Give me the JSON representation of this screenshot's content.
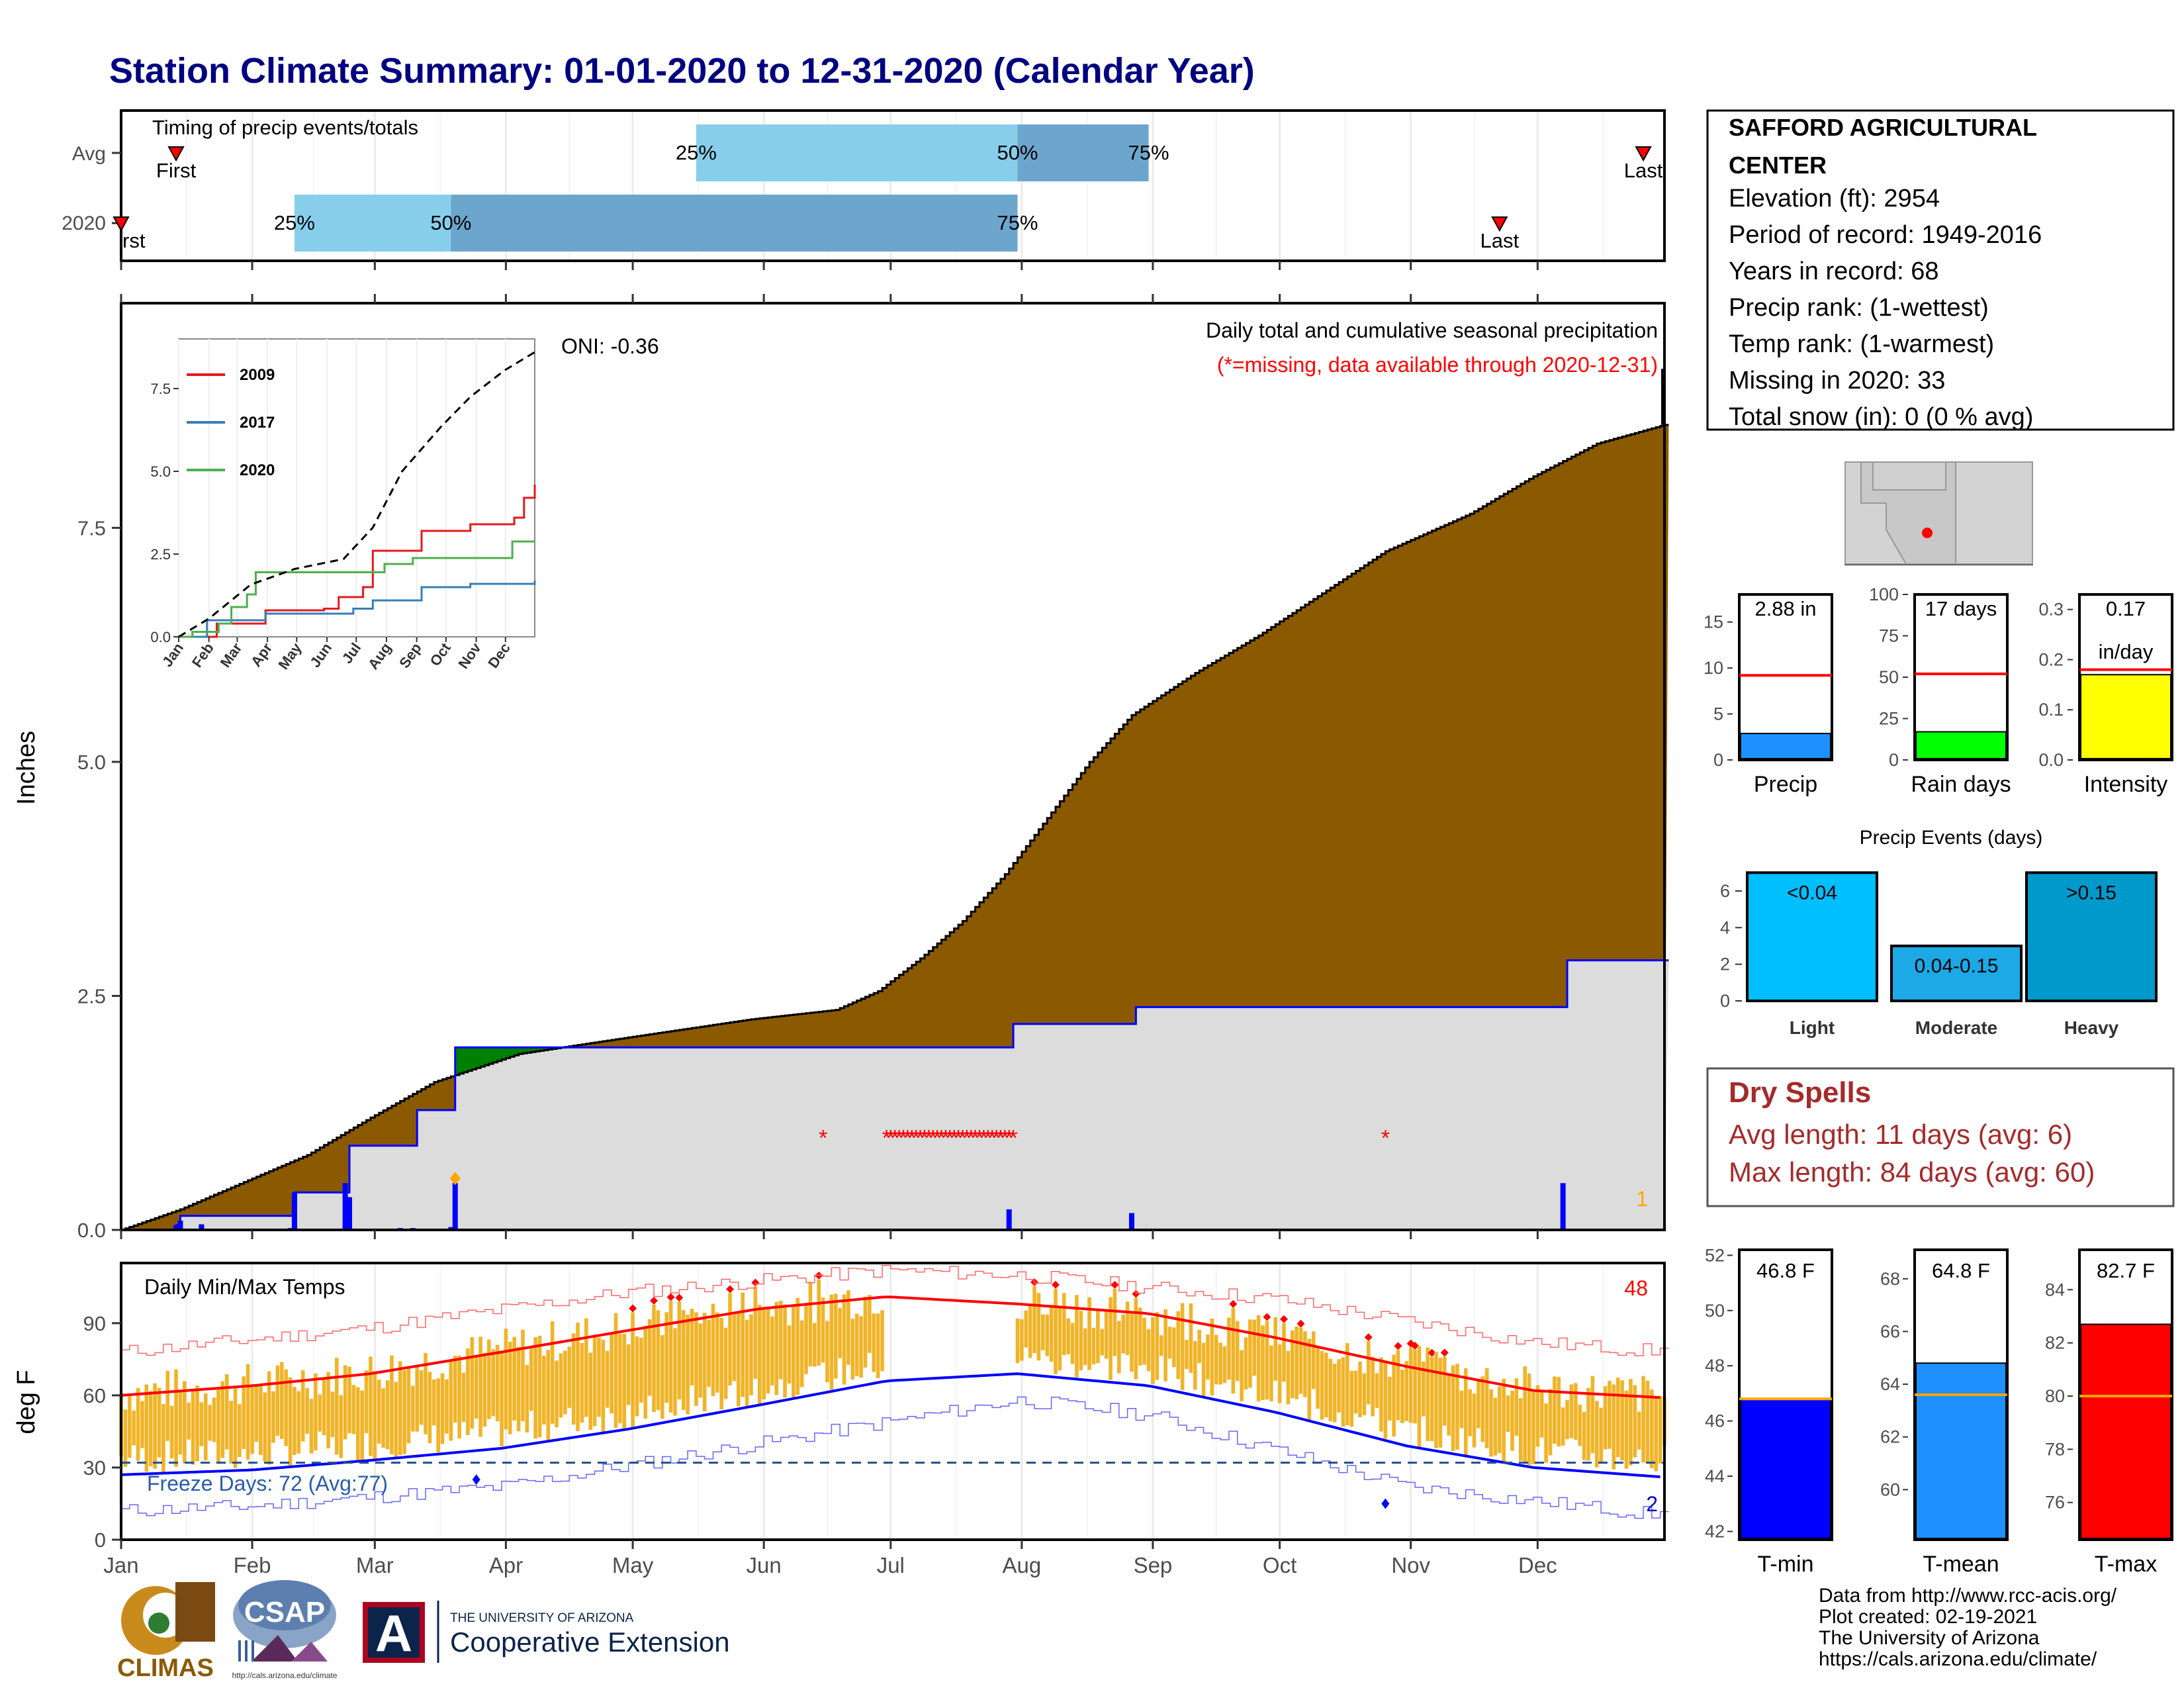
{
  "title": "Station Climate Summary: 01-01-2020 to 12-31-2020 (Calendar Year)",
  "months": [
    "Jan",
    "Feb",
    "Mar",
    "Apr",
    "May",
    "Jun",
    "Jul",
    "Aug",
    "Sep",
    "Oct",
    "Nov",
    "Dec"
  ],
  "colors": {
    "title": "#000080",
    "brown": "#8B5A00",
    "gray": "#DCDCDC",
    "light_blue": "#87CEEB",
    "mid_blue": "#6CA6CD",
    "red": "#FF0000",
    "gold": "#F0B429",
    "dry_red": "#A52A2A"
  },
  "timing": {
    "label": "Timing of precip events/totals",
    "rows": [
      "Avg",
      "2020"
    ],
    "first_label": "First",
    "last_label": "Last",
    "first_label_clipped": "rst",
    "avg": {
      "first": "01-14",
      "p25": "05-16",
      "p50": "07-31",
      "p75": "08-31",
      "last": "12-26"
    },
    "y2020": {
      "first": "01-01",
      "p25": "02-11",
      "p50": "03-19",
      "p75": "07-31",
      "last": "11-22"
    },
    "pct_labels": [
      "25%",
      "50%",
      "75%"
    ]
  },
  "main": {
    "ylabel": "Inches",
    "title": "Daily total and cumulative seasonal precipitation",
    "subtitle": "(*=missing, data available through 2020-12-31)",
    "oni": "ONI: -0.36",
    "yticks": [
      "0.0",
      "2.5",
      "5.0",
      "7.5"
    ],
    "corner_count": "1"
  },
  "inset": {
    "legend": [
      "2009",
      "2017",
      "2020"
    ],
    "legend_colors": [
      "#E41A1C",
      "#377EB8",
      "#4DAF4A"
    ],
    "yticks": [
      "0.0",
      "2.5",
      "5.0",
      "7.5"
    ]
  },
  "temps": {
    "label": "Daily Min/Max Temps",
    "ylabel": "deg F",
    "yticks": [
      "0",
      "30",
      "60",
      "90"
    ],
    "freeze": "Freeze Days: 72 (Avg:77)",
    "count_hot": "48",
    "count_cold": "2"
  },
  "station": {
    "name_line1": "SAFFORD AGRICULTURAL",
    "name_line2": "CENTER",
    "lines": [
      "Elevation (ft): 2954",
      "Period of record: 1949-2016",
      "Years in record: 68",
      "Precip rank:  (1-wettest)",
      "Temp rank:  (1-warmest)",
      "Missing in 2020: 33",
      "Total snow (in): 0 (0 % avg)"
    ]
  },
  "mini_bars": [
    {
      "label": "Precip",
      "value_text": "2.88 in",
      "yticks": [
        "0",
        "5",
        "10",
        "15"
      ],
      "color": "#1E90FF"
    },
    {
      "label": "Rain days",
      "value_text": "17 days",
      "yticks": [
        "0",
        "25",
        "50",
        "75",
        "100"
      ],
      "color": "#00FF00"
    },
    {
      "label": "Intensity",
      "value_text": "0.17",
      "value_text2": "in/day",
      "yticks": [
        "0.0",
        "0.1",
        "0.2",
        "0.3"
      ],
      "color": "#FFFF00"
    }
  ],
  "events": {
    "title": "Precip Events (days)",
    "yticks": [
      "0",
      "2",
      "4",
      "6"
    ],
    "bars": [
      {
        "label": "Light",
        "inner": "<0.04",
        "value": 7,
        "color": "#00BFFF"
      },
      {
        "label": "Moderate",
        "inner": "0.04-0.15",
        "value": 3,
        "color": "#1CA9E6"
      },
      {
        "label": "Heavy",
        "inner": ">0.15",
        "value": 7,
        "color": "#0099CC"
      }
    ]
  },
  "dry": {
    "title": "Dry Spells",
    "avg": "Avg length: 11 days (avg: 6)",
    "max": "Max length: 84 days (avg: 60)"
  },
  "temp_bars": [
    {
      "label": "T-min",
      "value_text": "46.8 F",
      "value": 46.8,
      "avg": 46.8,
      "min": 41.7,
      "max": 52.2,
      "yticks": [
        42,
        44,
        46,
        48,
        50,
        52
      ],
      "color": "#0000FF"
    },
    {
      "label": "T-mean",
      "value_text": "64.8 F",
      "value": 64.8,
      "avg": 63.6,
      "min": 58.1,
      "max": 69.1,
      "yticks": [
        60,
        62,
        64,
        66,
        68
      ],
      "color": "#1E90FF"
    },
    {
      "label": "T-max",
      "value_text": "82.7 F",
      "value": 82.7,
      "avg": 80.0,
      "min": 74.6,
      "max": 85.5,
      "yticks": [
        76,
        78,
        80,
        82,
        84
      ],
      "color": "#FF0000"
    }
  ],
  "footer": {
    "lines": [
      "Data from http://www.rcc-acis.org/",
      "Plot created: 02-19-2021",
      "The University of Arizona",
      "https://cals.arizona.edu/climate/"
    ],
    "climas": "CLIMAS",
    "csap": "CSAP",
    "csap_url": "http://cals.arizona.edu/climate",
    "ua_small": "THE UNIVERSITY OF ARIZONA",
    "ua_big": "Cooperative Extension",
    "ua_letter": "A"
  },
  "chart_data": [
    {
      "type": "bar",
      "title": "Timing of precip events/totals",
      "categories": [
        "Avg",
        "2020"
      ],
      "series": [
        {
          "name": "Avg",
          "first": "01-14",
          "p25": "05-16",
          "p50": "07-31",
          "p75": "08-31",
          "last": "12-26"
        },
        {
          "name": "2020",
          "first": "01-01",
          "p25": "02-11",
          "p50": "03-19",
          "p75": "07-31",
          "last": "11-22"
        }
      ]
    },
    {
      "type": "area",
      "title": "Daily total and cumulative seasonal precipitation",
      "ylabel": "Inches",
      "ylim": [
        0,
        9.9
      ],
      "x_unit": "day of year",
      "series": [
        {
          "name": "Average cumulative",
          "points": [
            [
              1,
              0
            ],
            [
              15,
              0.22
            ],
            [
              32,
              0.55
            ],
            [
              45,
              0.8
            ],
            [
              60,
              1.2
            ],
            [
              75,
              1.58
            ],
            [
              95,
              1.88
            ],
            [
              120,
              2.05
            ],
            [
              150,
              2.25
            ],
            [
              170,
              2.35
            ],
            [
              180,
              2.55
            ],
            [
              190,
              2.9
            ],
            [
              200,
              3.3
            ],
            [
              210,
              3.8
            ],
            [
              220,
              4.4
            ],
            [
              230,
              5.0
            ],
            [
              240,
              5.5
            ],
            [
              255,
              5.95
            ],
            [
              270,
              6.35
            ],
            [
              285,
              6.8
            ],
            [
              300,
              7.25
            ],
            [
              320,
              7.65
            ],
            [
              335,
              8.05
            ],
            [
              350,
              8.4
            ],
            [
              366,
              8.6
            ]
          ]
        },
        {
          "name": "2020 cumulative",
          "points": [
            [
              1,
              0
            ],
            [
              14,
              0.05
            ],
            [
              15,
              0.15
            ],
            [
              41,
              0.15
            ],
            [
              42,
              0.4
            ],
            [
              54,
              0.4
            ],
            [
              55,
              0.9
            ],
            [
              70,
              0.9
            ],
            [
              71,
              1.28
            ],
            [
              79,
              1.28
            ],
            [
              80,
              1.95
            ],
            [
              211,
              1.95
            ],
            [
              212,
              2.2
            ],
            [
              240,
              2.2
            ],
            [
              241,
              2.38
            ],
            [
              342,
              2.38
            ],
            [
              343,
              2.88
            ],
            [
              366,
              2.88
            ]
          ]
        },
        {
          "name": "Daily precip",
          "points": [
            [
              14,
              0.05
            ],
            [
              15,
              0.1
            ],
            [
              20,
              0.06
            ],
            [
              41,
              0.02
            ],
            [
              42,
              0.4
            ],
            [
              54,
              0.5
            ],
            [
              55,
              0.35
            ],
            [
              67,
              0.02
            ],
            [
              68,
              0.01
            ],
            [
              70,
              0.02
            ],
            [
              79,
              0.03
            ],
            [
              80,
              0.5
            ],
            [
              211,
              0.22
            ],
            [
              240,
              0.18
            ],
            [
              342,
              0.5
            ]
          ]
        }
      ],
      "missing_days": [
        167,
        182,
        183,
        184,
        185,
        186,
        187,
        188,
        189,
        190,
        191,
        192,
        193,
        194,
        195,
        196,
        197,
        198,
        199,
        200,
        201,
        202,
        203,
        204,
        205,
        206,
        207,
        208,
        209,
        210,
        211,
        212,
        300
      ]
    },
    {
      "type": "line",
      "title": "",
      "ylim": [
        0,
        9
      ],
      "series": [
        {
          "name": "2009",
          "points": [
            [
              1,
              0
            ],
            [
              40,
              0.4
            ],
            [
              90,
              0.8
            ],
            [
              150,
              0.85
            ],
            [
              165,
              1.2
            ],
            [
              190,
              1.5
            ],
            [
              200,
              2.6
            ],
            [
              250,
              3.2
            ],
            [
              300,
              3.4
            ],
            [
              345,
              3.6
            ],
            [
              355,
              4.2
            ],
            [
              366,
              4.6
            ]
          ]
        },
        {
          "name": "2017",
          "points": [
            [
              1,
              0
            ],
            [
              30,
              0.5
            ],
            [
              90,
              0.7
            ],
            [
              180,
              0.85
            ],
            [
              200,
              1.1
            ],
            [
              250,
              1.5
            ],
            [
              300,
              1.6
            ],
            [
              366,
              1.7
            ]
          ]
        },
        {
          "name": "2020",
          "points": [
            [
              1,
              0
            ],
            [
              15,
              0.15
            ],
            [
              42,
              0.4
            ],
            [
              55,
              0.9
            ],
            [
              71,
              1.28
            ],
            [
              80,
              1.95
            ],
            [
              211,
              1.95
            ],
            [
              212,
              2.2
            ],
            [
              241,
              2.38
            ],
            [
              343,
              2.88
            ],
            [
              366,
              2.88
            ]
          ]
        },
        {
          "name": "Average",
          "points": [
            [
              1,
              0
            ],
            [
              32,
              0.55
            ],
            [
              75,
              1.58
            ],
            [
              120,
              2.05
            ],
            [
              170,
              2.35
            ],
            [
              200,
              3.3
            ],
            [
              230,
              5.0
            ],
            [
              270,
              6.35
            ],
            [
              300,
              7.25
            ],
            [
              335,
              8.05
            ],
            [
              366,
              8.6
            ]
          ]
        }
      ]
    },
    {
      "type": "bar",
      "title": "Daily Min/Max Temps",
      "ylabel": "deg F",
      "ylim": [
        0,
        115
      ],
      "x_unit": "day of year",
      "series": [
        {
          "name": "Normal max",
          "points": [
            [
              1,
              60
            ],
            [
              32,
              64
            ],
            [
              60,
              69
            ],
            [
              91,
              78
            ],
            [
              121,
              87
            ],
            [
              152,
              96
            ],
            [
              182,
              101
            ],
            [
              213,
              98
            ],
            [
              244,
              94
            ],
            [
              274,
              84
            ],
            [
              305,
              72
            ],
            [
              335,
              62
            ],
            [
              366,
              59
            ]
          ]
        },
        {
          "name": "Normal min",
          "points": [
            [
              1,
              27
            ],
            [
              32,
              29
            ],
            [
              60,
              33
            ],
            [
              91,
              38
            ],
            [
              121,
              46
            ],
            [
              152,
              56
            ],
            [
              182,
              66
            ],
            [
              213,
              69
            ],
            [
              244,
              64
            ],
            [
              274,
              53
            ],
            [
              305,
              39
            ],
            [
              335,
              30
            ],
            [
              366,
              26
            ]
          ]
        },
        {
          "name": "Record max",
          "points": [
            [
              1,
              78
            ],
            [
              60,
              88
            ],
            [
              121,
              103
            ],
            [
              182,
              112
            ],
            [
              213,
              110
            ],
            [
              274,
              100
            ],
            [
              335,
              82
            ],
            [
              366,
              78
            ]
          ]
        },
        {
          "name": "Record min",
          "points": [
            [
              1,
              12
            ],
            [
              32,
              14
            ],
            [
              91,
              22
            ],
            [
              152,
              40
            ],
            [
              213,
              58
            ],
            [
              244,
              52
            ],
            [
              305,
              22
            ],
            [
              366,
              10
            ]
          ]
        }
      ],
      "freeze_line": 32
    },
    {
      "type": "bar",
      "categories": [
        "Precip",
        "Rain days",
        "Intensity"
      ],
      "series": [
        {
          "name": "2020",
          "values": [
            2.88,
            17,
            0.17
          ]
        },
        {
          "name": "Average",
          "values": [
            9.2,
            52,
            0.18
          ]
        }
      ],
      "ylims": [
        [
          0,
          18
        ],
        [
          0,
          100
        ],
        [
          0,
          0.33
        ]
      ]
    },
    {
      "type": "bar",
      "title": "Precip Events (days)",
      "categories": [
        "Light",
        "Moderate",
        "Heavy"
      ],
      "values": [
        7,
        3,
        7
      ],
      "ylim": [
        0,
        7.3
      ]
    },
    {
      "type": "bar",
      "categories": [
        "T-min",
        "T-mean",
        "T-max"
      ],
      "values": [
        46.8,
        64.8,
        82.7
      ],
      "averages": [
        46.8,
        63.6,
        80.0
      ]
    }
  ]
}
